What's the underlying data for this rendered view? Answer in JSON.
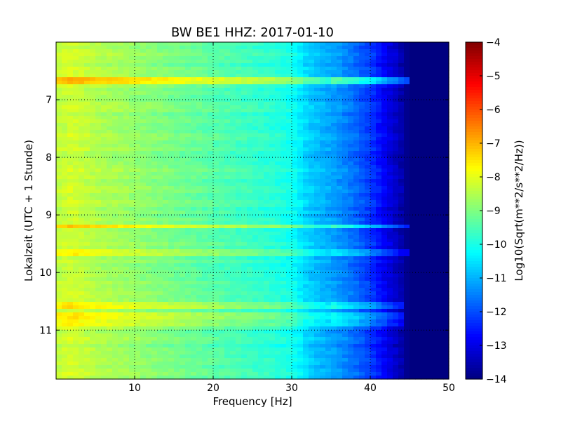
{
  "chart_data": {
    "type": "heatmap",
    "title": "BW BE1 HHZ: 2017-01-10",
    "xlabel": "Frequency [Hz]",
    "ylabel": "Lokalzeit (UTC + 1 Stunde)",
    "xlim": [
      0,
      50
    ],
    "ylim": [
      11.85,
      6.0
    ],
    "y_inverted": true,
    "grid": true,
    "x_ticks": [
      10,
      20,
      30,
      40,
      50
    ],
    "x_tick_labels": [
      "10",
      "20",
      "30",
      "40",
      "50"
    ],
    "y_ticks": [
      7,
      8,
      9,
      10,
      11
    ],
    "y_tick_labels": [
      "7",
      "8",
      "9",
      "10",
      "11"
    ],
    "colorbar": {
      "label": "Log10(Sqrt(m**2/s**2/Hz))",
      "range": [
        -14,
        -4
      ],
      "ticks": [
        -4,
        -5,
        -6,
        -7,
        -8,
        -9,
        -10,
        -11,
        -12,
        -13,
        -14
      ],
      "tick_labels": [
        "−4",
        "−5",
        "−6",
        "−7",
        "−8",
        "−9",
        "−10",
        "−11",
        "−12",
        "−13",
        "−14"
      ],
      "colormap": "jet"
    },
    "spectrum_profile": {
      "frequency_hz": [
        0,
        2,
        5,
        10,
        15,
        20,
        25,
        28,
        30,
        31,
        32,
        34,
        36,
        38,
        40,
        42,
        43.5,
        44.5,
        45,
        50
      ],
      "level": [
        -8.4,
        -8.2,
        -8.5,
        -8.8,
        -9.1,
        -9.4,
        -9.7,
        -9.9,
        -10.1,
        -10.4,
        -10.7,
        -11.0,
        -11.3,
        -11.7,
        -12.2,
        -12.9,
        -13.4,
        -13.8,
        -14.0,
        -14.0
      ]
    },
    "noise_bursts": [
      {
        "time": 6.65,
        "offset": 1.3,
        "max_freq_hz": 45
      },
      {
        "time": 9.2,
        "offset": 1.0,
        "max_freq_hz": 45
      },
      {
        "time": 9.68,
        "offset": 0.7,
        "max_freq_hz": 45
      },
      {
        "time": 10.55,
        "offset": 0.8,
        "max_freq_hz": 44
      },
      {
        "time": 10.75,
        "offset": 0.7,
        "max_freq_hz": 44
      },
      {
        "time": 10.87,
        "offset": 0.6,
        "max_freq_hz": 44
      }
    ]
  }
}
